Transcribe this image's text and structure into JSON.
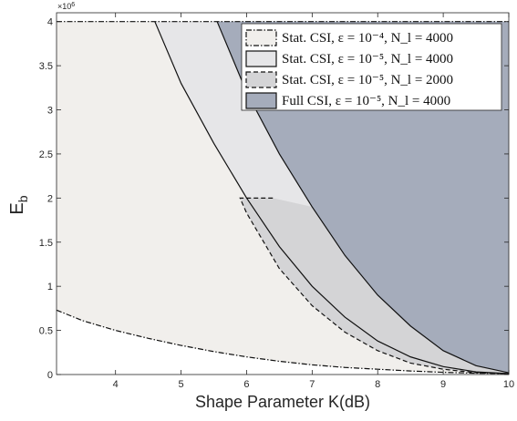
{
  "chart_data": {
    "type": "area",
    "title": "",
    "xlabel": "Shape Parameter K(dB)",
    "ylabel": "E_b",
    "ylabel_main": "E",
    "ylabel_sub": "b",
    "y_multiplier_label": "×10",
    "y_multiplier_exp": "6",
    "xlim": [
      3.1,
      10
    ],
    "ylim": [
      0,
      4.1
    ],
    "x_ticks": [
      4,
      5,
      6,
      7,
      8,
      9,
      10
    ],
    "y_ticks": [
      0,
      0.5,
      1,
      1.5,
      2,
      2.5,
      3,
      3.5,
      4
    ],
    "x_tick_labels": [
      "4",
      "5",
      "6",
      "7",
      "8",
      "9",
      "10"
    ],
    "y_tick_labels": [
      "0",
      "0.5",
      "1",
      "1.5",
      "2",
      "2.5",
      "3",
      "3.5",
      "4"
    ],
    "grid": false,
    "legend_position": "top-right",
    "colors": {
      "stat_1e4_4000": "#f1efec",
      "stat_1e5_4000": "#e6e6e8",
      "stat_1e5_2000": "#d4d4d6",
      "full_1e5_4000": "#a5acbb"
    },
    "series": [
      {
        "name": "Stat. CSI, ε = 10⁻⁴, N_l = 4000",
        "legend_html": "Stat. CSI, <tspan font-style='italic'>ε</tspan> = 10<tspan baseline-shift='super' font-size='10'>−4</tspan>, <tspan font-style='italic'>N</tspan><tspan baseline-shift='sub' font-size='10' font-style='italic'>l</tspan> = 4000",
        "line_style": "dashdot",
        "boundary_x": [
          3.1,
          3.5,
          4,
          4.5,
          5,
          5.5,
          6,
          6.5,
          7,
          7.5,
          8,
          8.5,
          9,
          9.5,
          10
        ],
        "boundary_y": [
          0.73,
          0.61,
          0.5,
          0.41,
          0.33,
          0.26,
          0.2,
          0.15,
          0.11,
          0.08,
          0.06,
          0.04,
          0.025,
          0.015,
          0.01
        ],
        "top_y": 4.0
      },
      {
        "name": "Stat. CSI, ε = 10⁻⁵, N_l = 4000",
        "line_style": "solid",
        "boundary_x": [
          4.6,
          5,
          5.5,
          6,
          6.5,
          7,
          7.5,
          8,
          8.5,
          9,
          9.5,
          10
        ],
        "boundary_y": [
          4.0,
          3.3,
          2.62,
          2.0,
          1.45,
          1.0,
          0.65,
          0.38,
          0.2,
          0.09,
          0.03,
          0.01
        ],
        "top_y": 4.0
      },
      {
        "name": "Stat. CSI, ε = 10⁻⁵, N_l = 2000",
        "line_style": "dashed",
        "boundary_x": [
          5.9,
          6,
          6.5,
          7,
          7.5,
          8,
          8.5,
          9,
          9.5,
          10
        ],
        "boundary_y": [
          2.0,
          1.83,
          1.2,
          0.78,
          0.48,
          0.27,
          0.13,
          0.06,
          0.02,
          0.01
        ],
        "top_y": 2.0,
        "top_x_end": 6.4
      },
      {
        "name": "Full CSI, ε = 10⁻⁵, N_l = 4000",
        "line_style": "solid",
        "boundary_x": [
          5.55,
          6,
          6.5,
          7,
          7.5,
          8,
          8.5,
          9,
          9.5,
          10
        ],
        "boundary_y": [
          4.0,
          3.2,
          2.5,
          1.9,
          1.35,
          0.9,
          0.55,
          0.27,
          0.1,
          0.02
        ],
        "top_y": 4.0
      }
    ],
    "legend_entries": [
      {
        "label": "Stat. CSI, ε = 10⁻⁴, N_l = 4000"
      },
      {
        "label": "Stat. CSI, ε = 10⁻⁵, N_l = 4000"
      },
      {
        "label": "Stat. CSI, ε = 10⁻⁵, N_l = 2000"
      },
      {
        "label": "Full CSI, ε = 10⁻⁵, N_l = 4000"
      }
    ]
  }
}
